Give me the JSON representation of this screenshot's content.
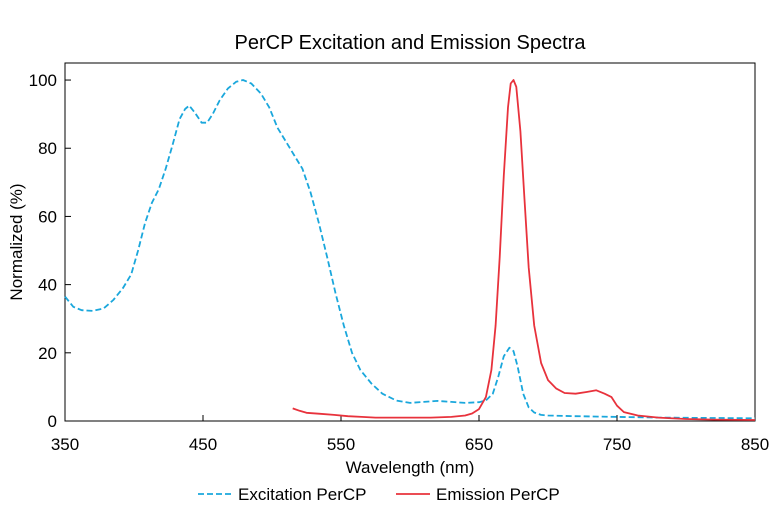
{
  "chart_data": {
    "type": "line",
    "title": "PerCP Excitation and Emission Spectra",
    "xlabel": "Wavelength (nm)",
    "ylabel": "Normalized (%)",
    "xlim": [
      350,
      850
    ],
    "ylim": [
      0,
      105
    ],
    "xticks": [
      350,
      450,
      550,
      650,
      750,
      850
    ],
    "yticks": [
      0,
      20,
      40,
      60,
      80,
      100
    ],
    "grid": false,
    "legend_position": "bottom-center",
    "series": [
      {
        "name": "Excitation PerCP",
        "color": "#1aa7dc",
        "style": "dashed",
        "points": [
          [
            350,
            36.5
          ],
          [
            356,
            33.5
          ],
          [
            362,
            32.5
          ],
          [
            370,
            32.3
          ],
          [
            378,
            33
          ],
          [
            385,
            35.5
          ],
          [
            392,
            39
          ],
          [
            398,
            43
          ],
          [
            403,
            50
          ],
          [
            408,
            58
          ],
          [
            413,
            64
          ],
          [
            418,
            68
          ],
          [
            423,
            74
          ],
          [
            428,
            81
          ],
          [
            433,
            88.5
          ],
          [
            437,
            91.5
          ],
          [
            440,
            92.5
          ],
          [
            444,
            90.5
          ],
          [
            449,
            87.5
          ],
          [
            453,
            87.5
          ],
          [
            457,
            90
          ],
          [
            462,
            94
          ],
          [
            468,
            97.5
          ],
          [
            474,
            99.5
          ],
          [
            479,
            100
          ],
          [
            485,
            99
          ],
          [
            492,
            96
          ],
          [
            498,
            92
          ],
          [
            504,
            86
          ],
          [
            510,
            82
          ],
          [
            516,
            78
          ],
          [
            522,
            74
          ],
          [
            528,
            67
          ],
          [
            534,
            58
          ],
          [
            540,
            48
          ],
          [
            546,
            37.5
          ],
          [
            552,
            28
          ],
          [
            558,
            20
          ],
          [
            564,
            15
          ],
          [
            572,
            11
          ],
          [
            580,
            8
          ],
          [
            590,
            6
          ],
          [
            600,
            5.3
          ],
          [
            610,
            5.6
          ],
          [
            620,
            5.9
          ],
          [
            630,
            5.6
          ],
          [
            640,
            5.3
          ],
          [
            650,
            5.5
          ],
          [
            655,
            6
          ],
          [
            660,
            8
          ],
          [
            664,
            13
          ],
          [
            668,
            19
          ],
          [
            672,
            21.5
          ],
          [
            675,
            20.5
          ],
          [
            678,
            16
          ],
          [
            682,
            8
          ],
          [
            686,
            4
          ],
          [
            690,
            2.5
          ],
          [
            695,
            1.8
          ],
          [
            700,
            1.6
          ],
          [
            720,
            1.4
          ],
          [
            750,
            1.2
          ],
          [
            780,
            1.0
          ],
          [
            810,
            0.9
          ],
          [
            850,
            0.8
          ]
        ]
      },
      {
        "name": "Emission PerCP",
        "color": "#e8323c",
        "style": "solid",
        "points": [
          [
            515,
            3.7
          ],
          [
            520,
            3
          ],
          [
            525,
            2.4
          ],
          [
            535,
            2.1
          ],
          [
            545,
            1.8
          ],
          [
            555,
            1.4
          ],
          [
            565,
            1.2
          ],
          [
            575,
            1.0
          ],
          [
            585,
            1.0
          ],
          [
            600,
            1.0
          ],
          [
            615,
            1.0
          ],
          [
            630,
            1.2
          ],
          [
            640,
            1.6
          ],
          [
            645,
            2.2
          ],
          [
            650,
            3.5
          ],
          [
            655,
            7
          ],
          [
            659,
            15
          ],
          [
            662,
            28
          ],
          [
            665,
            48
          ],
          [
            668,
            72
          ],
          [
            671,
            92
          ],
          [
            673,
            99
          ],
          [
            675,
            100
          ],
          [
            677,
            98
          ],
          [
            680,
            85
          ],
          [
            683,
            65
          ],
          [
            686,
            45
          ],
          [
            690,
            28
          ],
          [
            695,
            17
          ],
          [
            700,
            12
          ],
          [
            706,
            9.5
          ],
          [
            712,
            8.2
          ],
          [
            720,
            8
          ],
          [
            728,
            8.5
          ],
          [
            735,
            9
          ],
          [
            741,
            8
          ],
          [
            746,
            7
          ],
          [
            750,
            4.5
          ],
          [
            755,
            2.6
          ],
          [
            765,
            1.6
          ],
          [
            780,
            1.0
          ],
          [
            800,
            0.6
          ],
          [
            820,
            0.4
          ],
          [
            850,
            0.3
          ]
        ]
      }
    ]
  }
}
